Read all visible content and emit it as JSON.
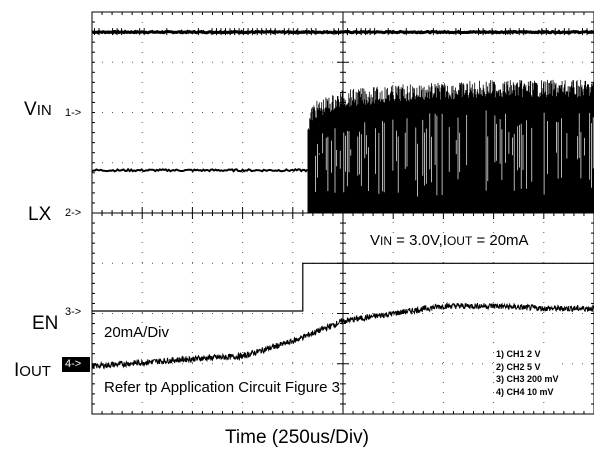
{
  "chart_data": {
    "type": "line",
    "title": "",
    "xlabel": "Time (250us/Div)",
    "ylabel": "",
    "x_unit": "div",
    "xlim": [
      0,
      10
    ],
    "ylim": [
      0,
      8
    ],
    "grid": true,
    "grid_divisions": {
      "x": 10,
      "y": 8
    },
    "channel_labels": [
      {
        "name": "V",
        "sub": "IN",
        "marker": "1->"
      },
      {
        "name": "LX",
        "sub": "",
        "marker": "2->"
      },
      {
        "name": "EN",
        "sub": "",
        "marker": "3->"
      },
      {
        "name": "I",
        "sub": "OUT",
        "marker": "4->"
      }
    ],
    "series": [
      {
        "name": "V_IN",
        "x": [
          0,
          10
        ],
        "y": [
          7.6,
          7.6
        ]
      },
      {
        "name": "LX_low",
        "x": [
          0,
          4.3
        ],
        "y": [
          4.85,
          4.85
        ]
      },
      {
        "name": "LX_envelope",
        "x": [
          4.3,
          4.4,
          5.0,
          6.0,
          7.0,
          8.0,
          9.0,
          10.0
        ],
        "y": [
          5.9,
          6.2,
          6.45,
          6.55,
          6.6,
          6.65,
          6.65,
          6.65
        ]
      },
      {
        "name": "EN",
        "x": [
          0,
          4.2,
          4.2,
          10
        ],
        "y": [
          2.05,
          2.05,
          3.0,
          3.0
        ]
      },
      {
        "name": "I_OUT",
        "x": [
          0,
          2.0,
          3.0,
          4.0,
          5.0,
          6.0,
          7.0,
          8.0,
          9.0,
          10.0
        ],
        "y": [
          0.95,
          1.1,
          1.15,
          1.45,
          1.85,
          2.0,
          2.15,
          2.15,
          2.1,
          2.1
        ]
      }
    ],
    "annotations": {
      "condition": {
        "a": "V",
        "a_sub": "IN",
        "b": " = 3.0V,I",
        "b_sub": "OUT",
        "c": " = 20mA"
      },
      "current_scale": "20mA/Div",
      "reference": "Refer tp Application Circuit Figure 3",
      "channel_scales": [
        "1) CH1 2 V",
        "2) CH2 5 V",
        "3) CH3 200 mV",
        "4) CH4 10 mV"
      ]
    }
  }
}
